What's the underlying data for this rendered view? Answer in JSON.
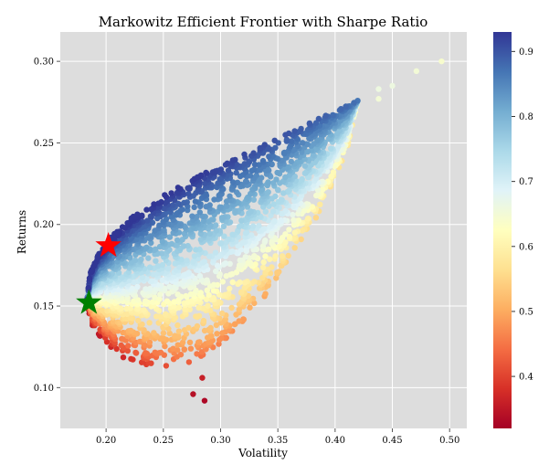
{
  "chart_data": {
    "type": "scatter",
    "title": "Markowitz Efficient Frontier with Sharpe Ratio",
    "xlabel": "Volatility",
    "ylabel": "Returns",
    "xlim": [
      0.16,
      0.515
    ],
    "ylim": [
      0.075,
      0.318
    ],
    "xticks": [
      "0.20",
      "0.25",
      "0.30",
      "0.35",
      "0.40",
      "0.45",
      "0.50"
    ],
    "yticks": [
      "0.10",
      "0.15",
      "0.20",
      "0.25",
      "0.30"
    ],
    "grid": true,
    "background": "#dddddd",
    "colormap": "RdYlBu",
    "colorbar": {
      "range": [
        0.32,
        0.93
      ],
      "ticks": [
        "0.4",
        "0.5",
        "0.6",
        "0.7",
        "0.8",
        "0.9"
      ]
    },
    "frontier_envelope": {
      "upper": [
        [
          0.183,
          0.152
        ],
        [
          0.186,
          0.17
        ],
        [
          0.193,
          0.182
        ],
        [
          0.205,
          0.193
        ],
        [
          0.225,
          0.206
        ],
        [
          0.255,
          0.22
        ],
        [
          0.29,
          0.233
        ],
        [
          0.33,
          0.246
        ],
        [
          0.365,
          0.258
        ],
        [
          0.395,
          0.268
        ],
        [
          0.42,
          0.276
        ]
      ],
      "lower": [
        [
          0.183,
          0.152
        ],
        [
          0.188,
          0.138
        ],
        [
          0.2,
          0.126
        ],
        [
          0.215,
          0.118
        ],
        [
          0.235,
          0.113
        ],
        [
          0.262,
          0.112
        ],
        [
          0.29,
          0.12
        ],
        [
          0.32,
          0.14
        ],
        [
          0.355,
          0.17
        ],
        [
          0.385,
          0.205
        ],
        [
          0.41,
          0.245
        ],
        [
          0.42,
          0.276
        ]
      ]
    },
    "outliers": [
      {
        "x": 0.493,
        "y": 0.3,
        "sharpe": 0.64
      },
      {
        "x": 0.471,
        "y": 0.294,
        "sharpe": 0.65
      },
      {
        "x": 0.45,
        "y": 0.285,
        "sharpe": 0.66
      },
      {
        "x": 0.438,
        "y": 0.283,
        "sharpe": 0.66
      },
      {
        "x": 0.438,
        "y": 0.277,
        "sharpe": 0.65
      },
      {
        "x": 0.286,
        "y": 0.092,
        "sharpe": 0.33
      },
      {
        "x": 0.276,
        "y": 0.096,
        "sharpe": 0.34
      },
      {
        "x": 0.284,
        "y": 0.106,
        "sharpe": 0.36
      }
    ],
    "markers": [
      {
        "name": "Maximum Sharpe Ratio",
        "x": 0.202,
        "y": 0.187,
        "color": "#ff0000"
      },
      {
        "name": "Minimum Volatility",
        "x": 0.185,
        "y": 0.152,
        "color": "#008000"
      }
    ]
  }
}
